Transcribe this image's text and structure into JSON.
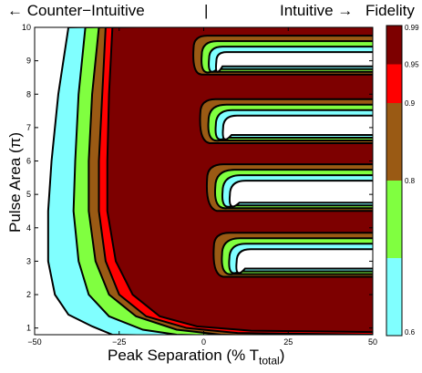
{
  "header": {
    "left": "← Counter−Intuitive",
    "divider": "|",
    "right": "Intuitive →"
  },
  "chart_data": {
    "type": "heatmap",
    "subtype": "filled-contour",
    "xlabel": "Peak Separation (% T",
    "xlabel_sub": "total",
    "xlabel_close": ")",
    "ylabel": "Pulse Area (π)",
    "xlim": [
      -50,
      50
    ],
    "ylim": [
      0.8,
      10
    ],
    "x_ticks": [
      {
        "value": -50,
        "label": "−50"
      },
      {
        "value": -25,
        "label": "−25"
      },
      {
        "value": 0,
        "label": "0"
      },
      {
        "value": 25,
        "label": "25"
      },
      {
        "value": 50,
        "label": "50"
      }
    ],
    "y_ticks": [
      {
        "value": 1,
        "label": "1"
      },
      {
        "value": 2,
        "label": "2"
      },
      {
        "value": 3,
        "label": "3"
      },
      {
        "value": 4,
        "label": "4"
      },
      {
        "value": 5,
        "label": "5"
      },
      {
        "value": 6,
        "label": "6"
      },
      {
        "value": 7,
        "label": "7"
      },
      {
        "value": 8,
        "label": "8"
      },
      {
        "value": 9,
        "label": "9"
      },
      {
        "value": 10,
        "label": "10"
      }
    ],
    "colorbar": {
      "title": "Fidelity",
      "ticks": [
        {
          "value": 0.6,
          "label": "0.6"
        },
        {
          "value": 0.8,
          "label": "0.8"
        },
        {
          "value": 0.9,
          "label": "0.9"
        },
        {
          "value": 0.95,
          "label": "0.95"
        },
        {
          "value": 0.99,
          "label": "0.99"
        }
      ],
      "bands": [
        {
          "from": 0.6,
          "to": 0.7,
          "color": "#80ffff"
        },
        {
          "from": 0.7,
          "to": 0.8,
          "color": "#80ff40"
        },
        {
          "from": 0.8,
          "to": 0.9,
          "color": "#9a5a14"
        },
        {
          "from": 0.9,
          "to": 0.95,
          "color": "#ff0000"
        },
        {
          "from": 0.95,
          "to": 0.99,
          "color": "#7d0000"
        }
      ]
    },
    "band_boundaries": {
      "cyan_outer": [
        [
          -40,
          10
        ],
        [
          -43,
          8
        ],
        [
          -45,
          6
        ],
        [
          -46,
          4.5
        ],
        [
          -46,
          3
        ],
        [
          -44,
          2
        ],
        [
          -40,
          1.4
        ],
        [
          -33,
          1.05
        ],
        [
          -27,
          0.8
        ]
      ],
      "green_outer": [
        [
          -35,
          10
        ],
        [
          -37,
          8
        ],
        [
          -38,
          6
        ],
        [
          -38.5,
          4.5
        ],
        [
          -37,
          3
        ],
        [
          -34,
          2
        ],
        [
          -28,
          1.35
        ],
        [
          -18,
          0.95
        ],
        [
          -8,
          0.8
        ]
      ],
      "brown_outer": [
        [
          -31,
          10
        ],
        [
          -33,
          8
        ],
        [
          -34,
          6
        ],
        [
          -34,
          4.5
        ],
        [
          -32,
          3
        ],
        [
          -28,
          2
        ],
        [
          -20,
          1.35
        ],
        [
          -8,
          0.95
        ],
        [
          5,
          0.8
        ]
      ],
      "red_outer": [
        [
          -29,
          10
        ],
        [
          -30,
          8
        ],
        [
          -31,
          6
        ],
        [
          -31,
          4.5
        ],
        [
          -29,
          3
        ],
        [
          -25,
          2
        ],
        [
          -17,
          1.35
        ],
        [
          -5,
          1.0
        ],
        [
          10,
          0.85
        ],
        [
          50,
          0.8
        ]
      ],
      "dark_outer": [
        [
          -27,
          10
        ],
        [
          -28,
          8
        ],
        [
          -28.5,
          6
        ],
        [
          -28.5,
          4.5
        ],
        [
          -26,
          3
        ],
        [
          -21,
          2
        ],
        [
          -13,
          1.35
        ],
        [
          -2,
          1.05
        ],
        [
          14,
          0.92
        ],
        [
          50,
          0.88
        ]
      ]
    },
    "islands": [
      {
        "name": "lobe-9",
        "tip": [
          -3,
          9.0
        ],
        "y_center": 9.0,
        "half_height": 0.75,
        "tip_min_y": 8.6
      },
      {
        "name": "lobe-7",
        "tip": [
          -1,
          7.0
        ],
        "y_center": 7.0,
        "half_height": 0.85,
        "tip_min_y": 6.6
      },
      {
        "name": "lobe-5",
        "tip": [
          1,
          5.0
        ],
        "y_center": 5.0,
        "half_height": 0.9,
        "tip_min_y": 4.6
      },
      {
        "name": "lobe-3",
        "tip": [
          3,
          3.0
        ],
        "y_center": 3.0,
        "half_height": 0.85,
        "tip_min_y": 2.6
      }
    ]
  }
}
